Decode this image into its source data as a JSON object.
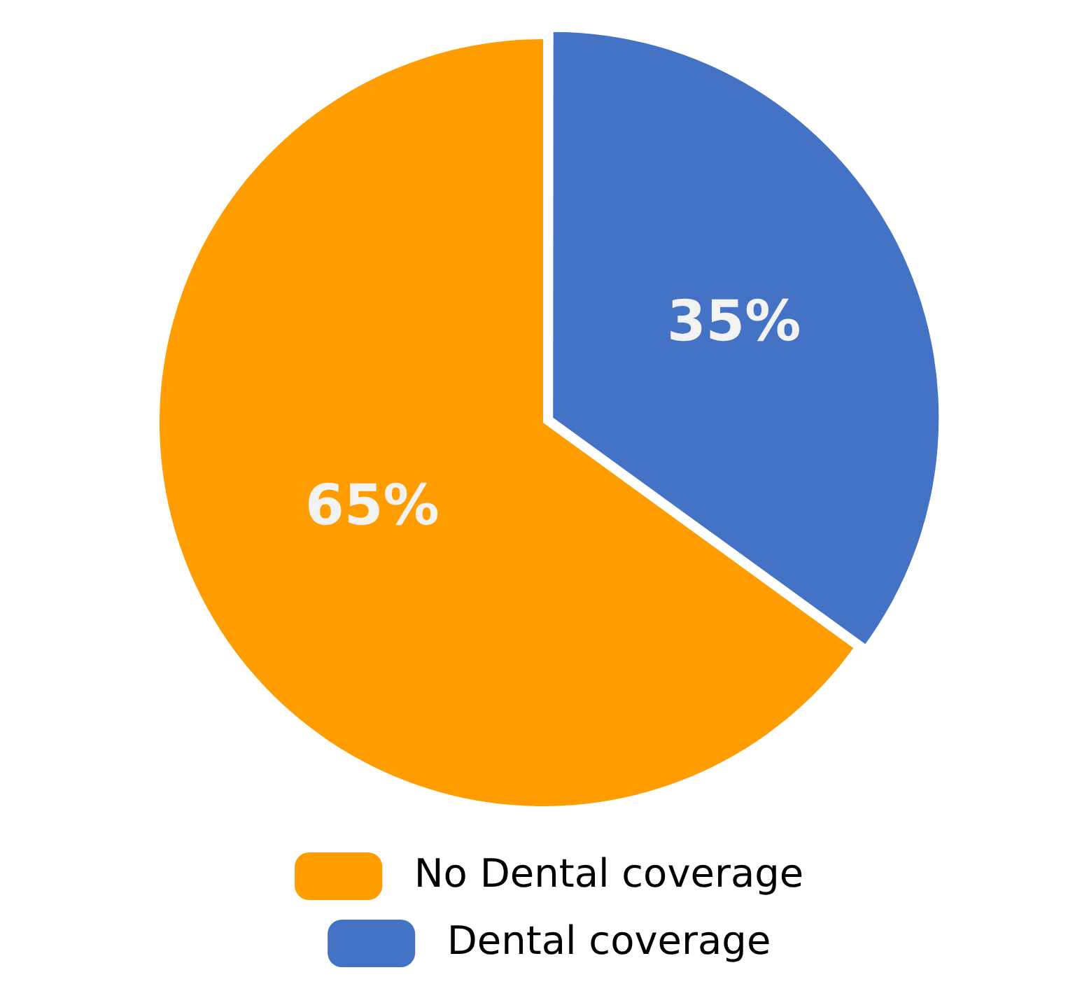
{
  "chart_data": {
    "type": "pie",
    "categories": [
      "No Dental coverage",
      "Dental coverage"
    ],
    "values": [
      65,
      35
    ],
    "colors": [
      "#ff9c00",
      "#4472c4"
    ],
    "value_labels": [
      "65%",
      "35%"
    ],
    "legend": "bottom"
  }
}
